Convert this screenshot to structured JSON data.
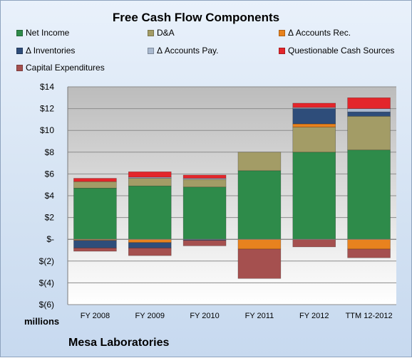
{
  "chart_data": {
    "type": "bar",
    "stacked": true,
    "title": "Free Cash Flow Components",
    "categories": [
      "FY 2008",
      "FY 2009",
      "FY 2010",
      "FY 2011",
      "FY 2012",
      "TTM 12-2012"
    ],
    "ylim": [
      -6,
      14
    ],
    "yticks": [
      14,
      12,
      10,
      8,
      6,
      4,
      2,
      0,
      -2,
      -4,
      -6
    ],
    "ytick_labels": [
      "$14",
      "$12",
      "$10",
      "$8",
      "$6",
      "$4",
      "$2",
      "$-",
      "$(2)",
      "$(4)",
      "$(6)"
    ],
    "units_label": "millions",
    "grid": true,
    "legend_position": "top",
    "series": [
      {
        "name": "Net Income",
        "color": "#2e8b4a",
        "values": [
          4.7,
          4.9,
          4.8,
          6.3,
          8.0,
          8.2
        ]
      },
      {
        "name": "D&A",
        "color": "#a39c66",
        "values": [
          0.6,
          0.7,
          0.7,
          1.7,
          2.3,
          3.1
        ]
      },
      {
        "name": "Δ Accounts Rec.",
        "color": "#e8821e",
        "values": [
          -0.1,
          -0.3,
          0,
          -0.9,
          0.3,
          -0.9
        ]
      },
      {
        "name": "Δ Inventories",
        "color": "#2e4d7a",
        "values": [
          -0.7,
          -0.5,
          -0.1,
          0,
          1.4,
          0.4
        ]
      },
      {
        "name": "Δ Accounts Pay.",
        "color": "#a9b9cf",
        "values": [
          0,
          0.1,
          0.1,
          0,
          0.1,
          0.3
        ]
      },
      {
        "name": "Questionable Cash Sources",
        "color": "#e3262b",
        "values": [
          0.3,
          0.5,
          0.3,
          0,
          0.4,
          1.0
        ]
      },
      {
        "name": "Capital Expenditures",
        "color": "#a5504f",
        "values": [
          -0.3,
          -0.7,
          -0.5,
          -2.7,
          -0.7,
          -0.8
        ]
      }
    ]
  },
  "footer": {
    "company": "Mesa Laboratories"
  }
}
